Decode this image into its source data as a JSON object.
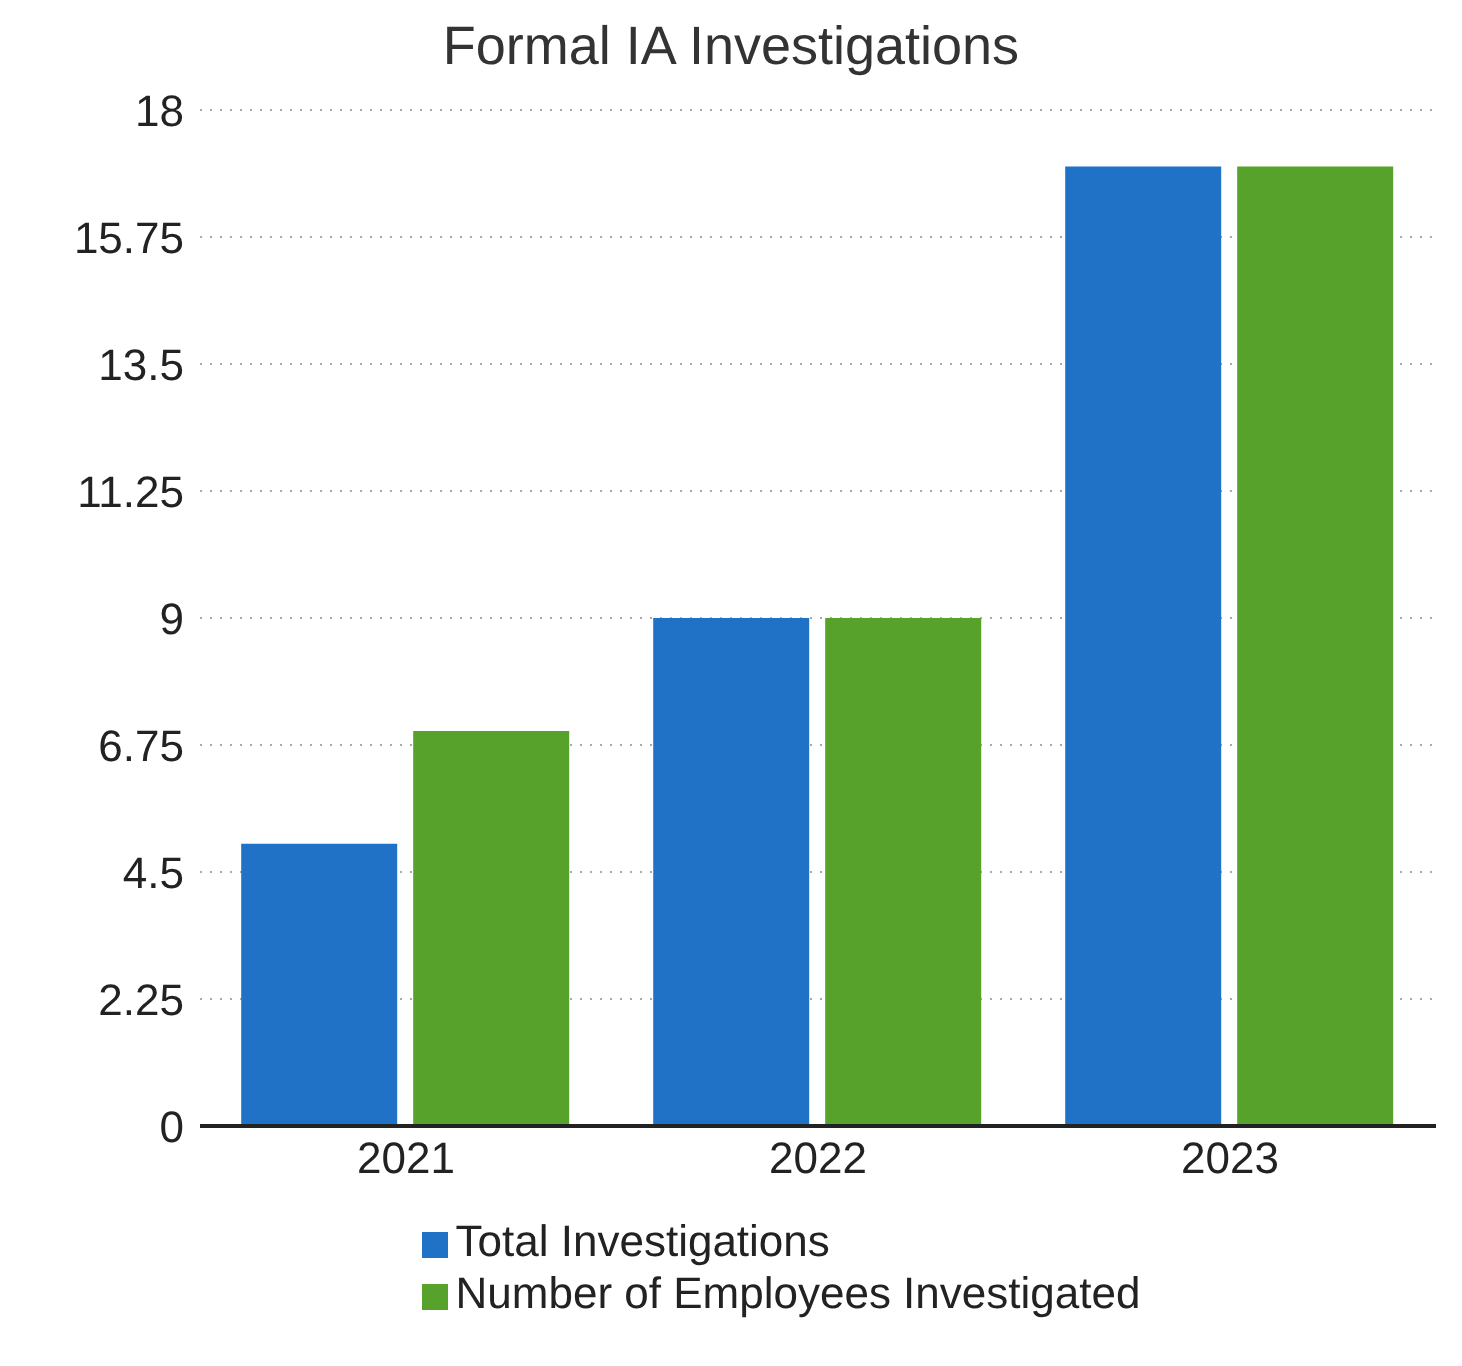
{
  "chart_data": {
    "type": "bar",
    "title": "Formal IA Investigations",
    "categories": [
      "2021",
      "2022",
      "2023"
    ],
    "series": [
      {
        "name": "Total Investigations",
        "color": "#1f72c6",
        "values": [
          5,
          9,
          17
        ]
      },
      {
        "name": "Number of Employees Investigated",
        "color": "#56a22a",
        "values": [
          7,
          9,
          17
        ]
      }
    ],
    "ylim": [
      0,
      18
    ],
    "yticks": [
      0,
      2.25,
      4.5,
      6.75,
      9,
      11.25,
      13.5,
      15.75,
      18
    ],
    "grid": "y",
    "legend": "bottom"
  }
}
